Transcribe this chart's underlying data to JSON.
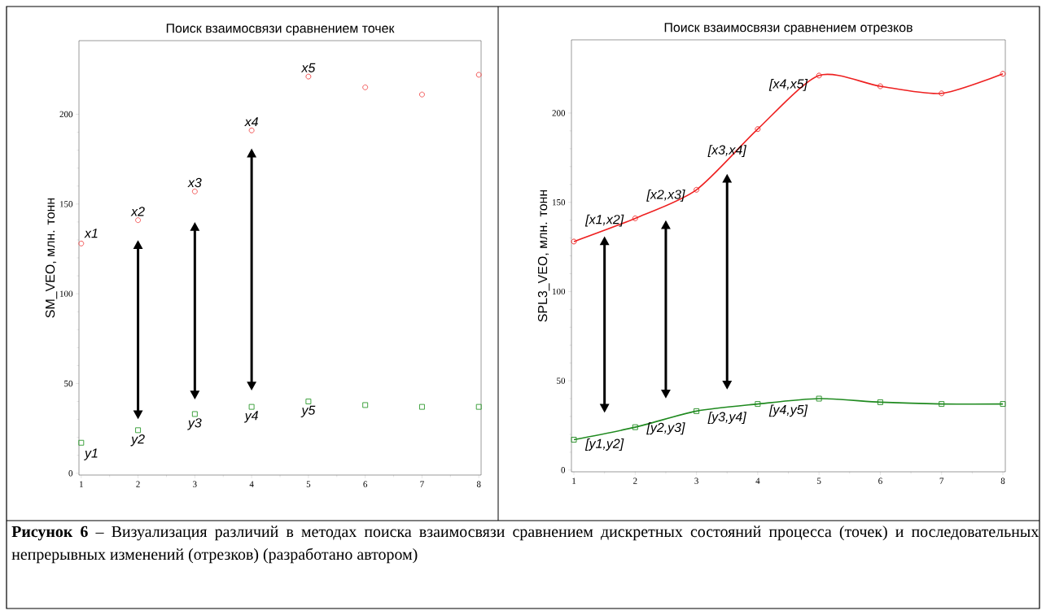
{
  "chart_data": [
    {
      "type": "scatter",
      "title": "Поиск взаимосвязи сравнением точек",
      "ylabel": "SM_VEO, млн. тонн",
      "x": [
        1,
        2,
        3,
        4,
        5,
        6,
        7,
        8
      ],
      "series": [
        {
          "color": "#f04848",
          "marker": "circle",
          "values": [
            128,
            141,
            157,
            191,
            221,
            215,
            211,
            222
          ]
        },
        {
          "color": "#2e9a2e",
          "marker": "square",
          "values": [
            17,
            24,
            33,
            37,
            40,
            38,
            37,
            37
          ]
        }
      ],
      "xlim": [
        0.96,
        8.04
      ],
      "ylim": [
        -1,
        241
      ],
      "xticks": [
        1,
        2,
        3,
        4,
        5,
        6,
        7,
        8
      ],
      "yticks": [
        0,
        50,
        100,
        150,
        200
      ],
      "annotations": [
        {
          "text": "x1",
          "x": 1,
          "y": 128
        },
        {
          "text": "x2",
          "x": 2,
          "y": 141
        },
        {
          "text": "x3",
          "x": 3,
          "y": 157
        },
        {
          "text": "x4",
          "x": 4,
          "y": 191
        },
        {
          "text": "x5",
          "x": 5,
          "y": 221
        },
        {
          "text": "y1",
          "x": 1,
          "y": 17
        },
        {
          "text": "y2",
          "x": 2,
          "y": 24
        },
        {
          "text": "y3",
          "x": 3,
          "y": 33
        },
        {
          "text": "y4",
          "x": 4,
          "y": 37
        },
        {
          "text": "y5",
          "x": 5,
          "y": 40
        },
        "**Рисунок 6** – Визуализация различий в методах поиска взаимосвязи сравнением дискретных состояний процесса (точек) и последовательных непрерывных изменений (отрезков) (разработано автором)"
      ]
    },
    {
      "type": "line",
      "title": "Поиск взаимосвязи сравнением отрезков",
      "ylabel": "SPL3_VEO, млн. тонн",
      "x": [
        1,
        2,
        3,
        4,
        5,
        6,
        7,
        8
      ],
      "series": [
        {
          "color": "#ee2020",
          "marker": "circle",
          "line_style": "solid",
          "values": [
            128,
            141,
            157,
            191,
            221,
            215,
            211,
            222
          ]
        },
        {
          "color": "#1f8a1f",
          "marker": "square",
          "line_style": "solid",
          "values": [
            17,
            24,
            33,
            37,
            40,
            38,
            37,
            37
          ]
        }
      ],
      "xlim": [
        0.96,
        8.04
      ],
      "ylim": [
        -1,
        241
      ],
      "xticks": [
        1,
        2,
        3,
        4,
        5,
        6,
        7,
        8
      ],
      "yticks": [
        0,
        50,
        100,
        150,
        200
      ],
      "annotations": [
        {
          "text": "[x1,x2]",
          "x": 1.5,
          "y": 134
        },
        {
          "text": "[x2,x3]",
          "x": 2.5,
          "y": 148
        },
        {
          "text": "[x3,x4]",
          "x": 3.5,
          "y": 173
        },
        {
          "text": "[x4,x5]",
          "x": 4.5,
          "y": 210
        },
        {
          "text": "[y1,y2]",
          "x": 1.5,
          "y": 20
        },
        {
          "text": "[y2,y3]",
          "x": 2.5,
          "y": 29
        },
        {
          "text": "[y3,y4]",
          "x": 3.5,
          "y": 35
        },
        {
          "text": "[y4,y5]",
          "x": 4.5,
          "y": 39
        }
      ]
    }
  ]
}
